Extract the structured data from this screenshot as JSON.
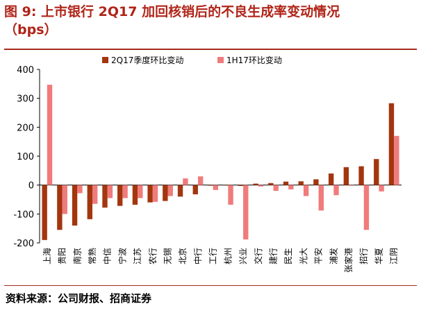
{
  "header": {
    "title": "图 9: 上市银行 2Q17 加回核销后的不良生成率变动情况",
    "subtitle": "（bps）"
  },
  "footer": {
    "source": "资料来源：公司财报、招商证券"
  },
  "colors": {
    "title": "#b02418",
    "series_2q17": "#a3360f",
    "series_1h17": "#f07b7b"
  },
  "chart_data": {
    "type": "bar",
    "categories": [
      "上海",
      "贵阳",
      "南京",
      "常熟",
      "中信",
      "宁波",
      "江苏",
      "农行",
      "无锡",
      "北京",
      "中行",
      "工行",
      "杭州",
      "兴业",
      "交行",
      "建行",
      "民生",
      "光大",
      "平安",
      "浦发",
      "张家港",
      "招行",
      "华夏",
      "江阴"
    ],
    "series": [
      {
        "name": "2Q17季度环比变动",
        "values": [
          -190,
          -155,
          -140,
          -118,
          -78,
          -72,
          -68,
          -60,
          -55,
          -40,
          -32,
          -2,
          0,
          -3,
          5,
          7,
          12,
          13,
          20,
          40,
          62,
          65,
          90,
          283
        ]
      },
      {
        "name": "1H17环比变动",
        "values": [
          347,
          -100,
          -28,
          -65,
          -45,
          -45,
          -45,
          -58,
          -38,
          23,
          30,
          -17,
          -68,
          -188,
          -5,
          -20,
          -15,
          -38,
          -88,
          -35,
          -2,
          -155,
          -22,
          170
        ]
      }
    ],
    "ylim": [
      -200,
      400
    ],
    "yticks": [
      "400",
      "300",
      "200",
      "100",
      "0",
      "-100",
      "-200"
    ],
    "ytick_values": [
      400,
      300,
      200,
      100,
      0,
      -100,
      -200
    ],
    "legend_position": "top",
    "grid": false
  }
}
